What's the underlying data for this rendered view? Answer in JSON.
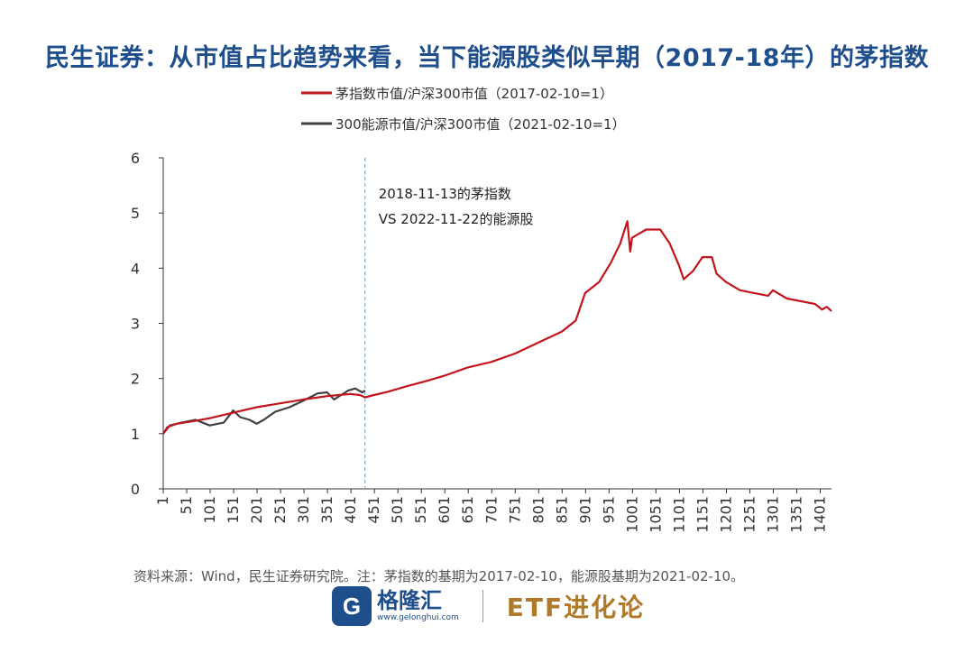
{
  "title": "民生证券：从市值占比趋势来看，当下能源股类似早期（2017-18年）的茅指数",
  "source_note": "资料来源：Wind，民生证券研究院。注：茅指数的基期为2017-02-10，能源股基期为2021-02-10。",
  "footer": {
    "logo_letter": "G",
    "logo_cn": "格隆汇",
    "logo_url": "www.gelonghui.com",
    "brand": "ETF进化论"
  },
  "chart_data": {
    "type": "line",
    "title": "",
    "xlabel": "",
    "ylabel": "",
    "xlim": [
      1,
      1425
    ],
    "ylim": [
      0,
      6
    ],
    "y_ticks": [
      0,
      1,
      2,
      3,
      4,
      5,
      6
    ],
    "x_ticks": [
      1,
      51,
      101,
      151,
      201,
      251,
      301,
      351,
      401,
      451,
      501,
      551,
      601,
      651,
      701,
      751,
      801,
      851,
      901,
      951,
      1001,
      1051,
      1101,
      1151,
      1201,
      1251,
      1301,
      1351,
      1401
    ],
    "grid": false,
    "legend_position": "top-center",
    "annotation": {
      "x": 431,
      "lines": [
        "2018-11-13的茅指数",
        "VS 2022-11-22的能源股"
      ]
    },
    "series": [
      {
        "name": "茅指数市值/沪深300市值（2017-02-10=1）",
        "color": "#c0151b",
        "x": [
          1,
          10,
          30,
          60,
          100,
          150,
          200,
          250,
          300,
          350,
          400,
          420,
          431,
          450,
          480,
          520,
          560,
          600,
          650,
          700,
          750,
          800,
          850,
          880,
          900,
          930,
          955,
          975,
          990,
          996,
          1000,
          1010,
          1030,
          1060,
          1080,
          1100,
          1110,
          1130,
          1150,
          1170,
          1180,
          1200,
          1230,
          1260,
          1290,
          1300,
          1330,
          1360,
          1390,
          1405,
          1415,
          1425
        ],
        "y": [
          1.0,
          1.12,
          1.18,
          1.22,
          1.28,
          1.38,
          1.48,
          1.55,
          1.62,
          1.68,
          1.72,
          1.7,
          1.66,
          1.7,
          1.76,
          1.86,
          1.95,
          2.05,
          2.2,
          2.3,
          2.45,
          2.65,
          2.85,
          3.05,
          3.55,
          3.75,
          4.1,
          4.45,
          4.85,
          4.3,
          4.55,
          4.6,
          4.7,
          4.7,
          4.45,
          4.05,
          3.8,
          3.95,
          4.2,
          4.2,
          3.9,
          3.75,
          3.6,
          3.55,
          3.5,
          3.6,
          3.45,
          3.4,
          3.35,
          3.25,
          3.3,
          3.22
        ]
      },
      {
        "name": "300能源市值/沪深300市值（2021-02-10=1）",
        "color": "#404040",
        "x": [
          1,
          15,
          40,
          70,
          100,
          130,
          150,
          165,
          185,
          200,
          215,
          240,
          270,
          300,
          330,
          350,
          365,
          380,
          395,
          410,
          425,
          431
        ],
        "y": [
          1.0,
          1.15,
          1.2,
          1.25,
          1.15,
          1.2,
          1.42,
          1.3,
          1.25,
          1.18,
          1.25,
          1.4,
          1.48,
          1.6,
          1.73,
          1.75,
          1.62,
          1.7,
          1.78,
          1.82,
          1.75,
          1.78
        ]
      }
    ]
  }
}
